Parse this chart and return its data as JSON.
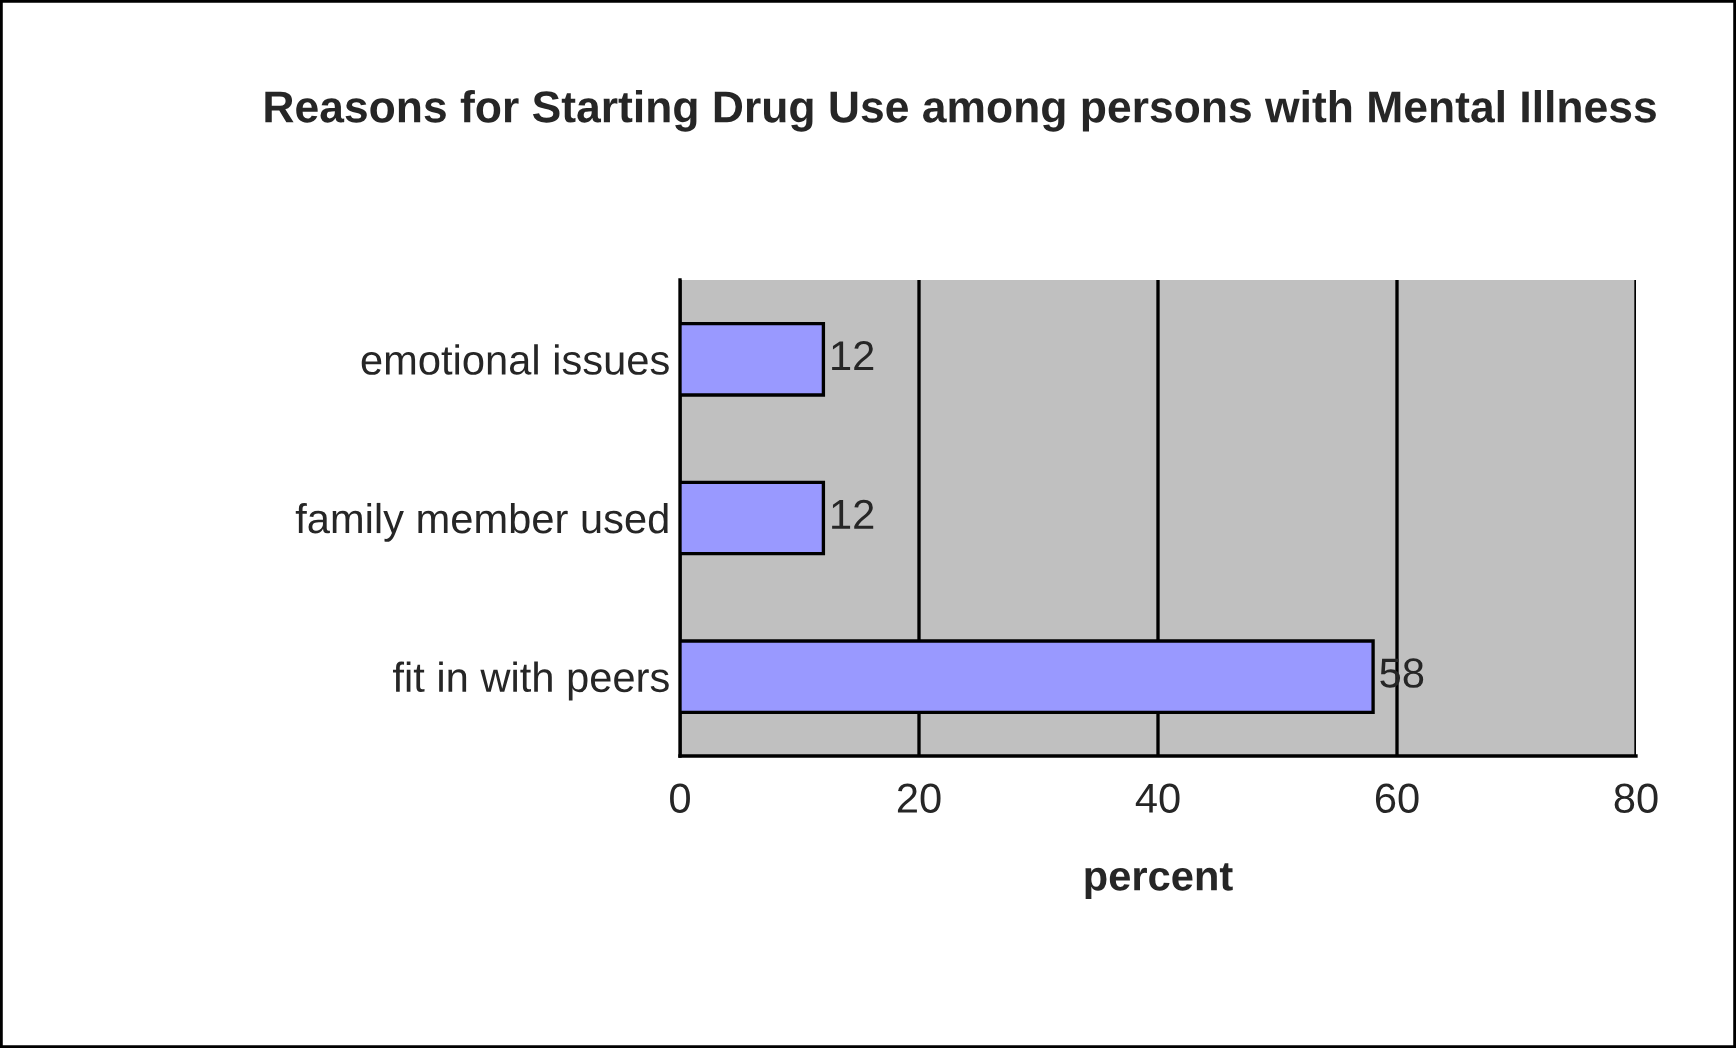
{
  "chart_data": {
    "type": "bar",
    "orientation": "horizontal",
    "title": "Reasons for Starting Drug Use among persons with Mental Illness",
    "xlabel": "percent",
    "categories": [
      "emotional issues",
      "family member used",
      "fit in with peers"
    ],
    "values": [
      12,
      12,
      58
    ],
    "color": "#9999ff",
    "xlim": [
      0,
      80
    ],
    "xticks": [
      0,
      20,
      40,
      60,
      80
    ],
    "grid": "x",
    "data_labels": true
  }
}
